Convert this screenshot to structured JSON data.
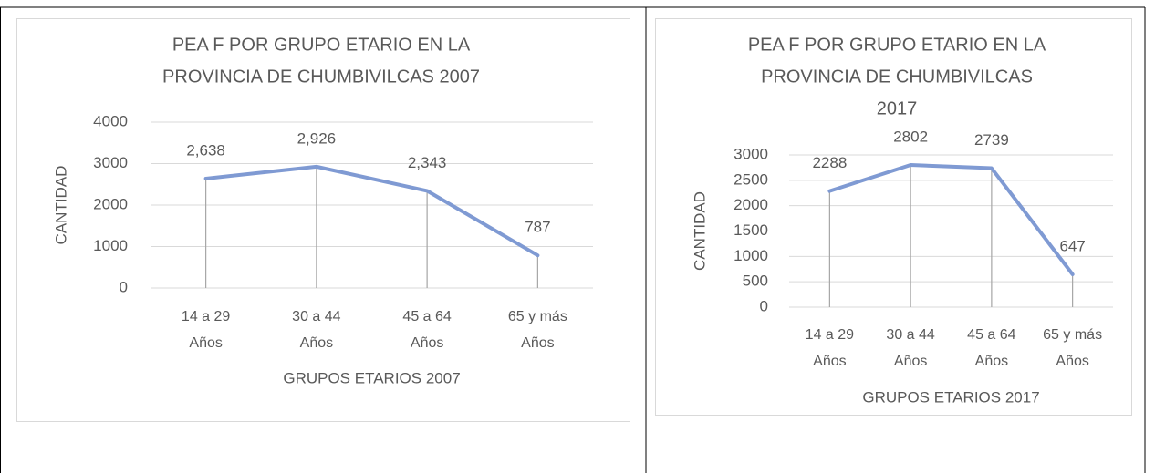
{
  "chart_data": [
    {
      "type": "line",
      "title": [
        "PEA F POR GRUPO ETARIO EN LA",
        "PROVINCIA DE CHUMBIVILCAS 2007"
      ],
      "y_label": "CANTIDAD",
      "x_label": "GRUPOS ETARIOS 2007",
      "categories": [
        "14 a 29 Años",
        "30 a 44 Años",
        "45 a 64 Años",
        "65 y más Años"
      ],
      "values": [
        2638,
        2926,
        2343,
        787
      ],
      "value_labels": [
        "2,638",
        "2,926",
        "2,343",
        "787"
      ],
      "color": "#7f9ad3",
      "drop_lines": true,
      "grid": true,
      "ylim": [
        0,
        4000
      ],
      "yticks": [
        0,
        1000,
        2000,
        3000,
        4000
      ]
    },
    {
      "type": "line",
      "title": [
        "PEA F POR GRUPO ETARIO EN LA",
        "PROVINCIA DE CHUMBIVILCAS",
        "2017"
      ],
      "y_label": "CANTIDAD",
      "x_label": "GRUPOS ETARIOS 2017",
      "categories": [
        "14 a 29 Años",
        "30 a 44 Años",
        "45 a 64 Años",
        "65 y más Años"
      ],
      "values": [
        2288,
        2802,
        2739,
        647
      ],
      "color": "#7f9ad3",
      "drop_lines": true,
      "grid": true,
      "ylim": [
        0,
        3000
      ],
      "yticks": [
        0,
        500,
        1000,
        1500,
        2000,
        2500,
        3000
      ]
    }
  ]
}
